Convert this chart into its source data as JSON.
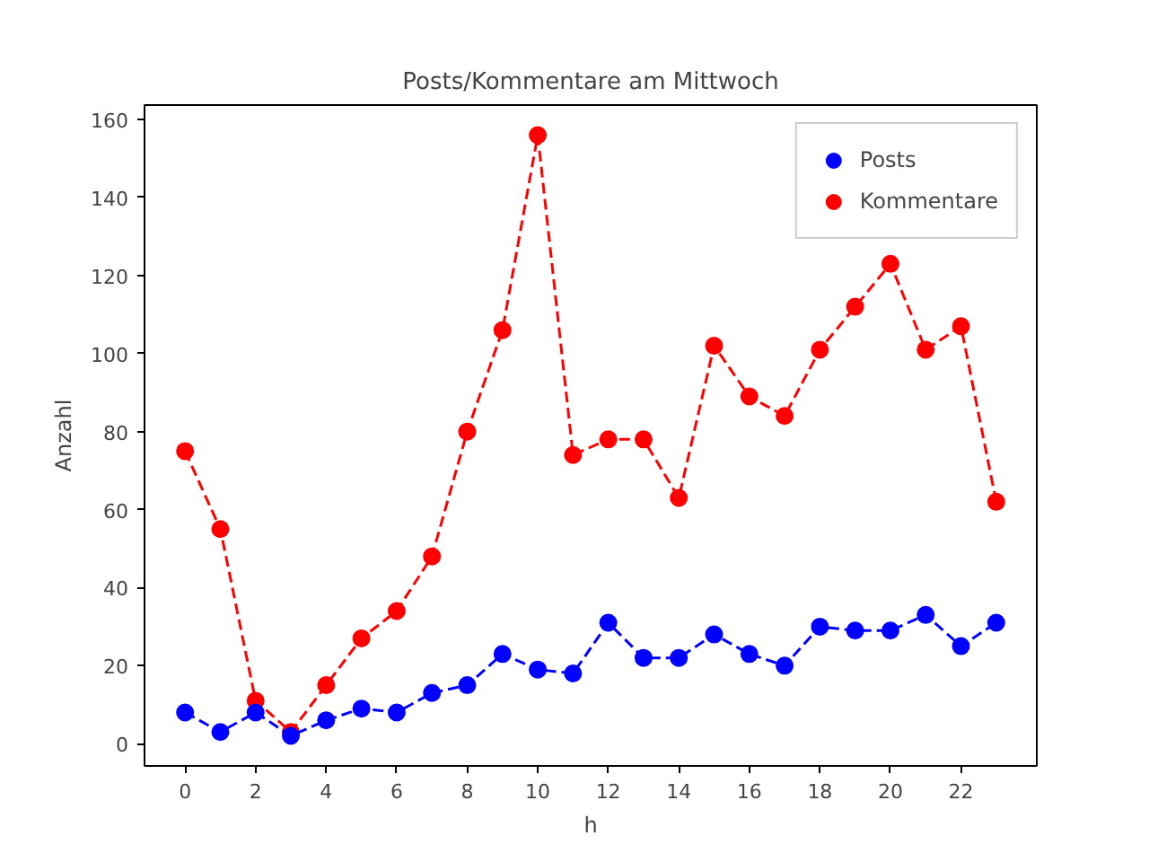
{
  "chart_data": {
    "type": "line",
    "title": "Posts/Kommentare am Mittwoch",
    "xlabel": "h",
    "ylabel": "Anzahl",
    "x": [
      0,
      1,
      2,
      3,
      4,
      5,
      6,
      7,
      8,
      9,
      10,
      11,
      12,
      13,
      14,
      15,
      16,
      17,
      18,
      19,
      20,
      21,
      22,
      23
    ],
    "series": [
      {
        "name": "Posts",
        "color": "#0000ff",
        "values": [
          8,
          3,
          8,
          2,
          6,
          9,
          8,
          13,
          15,
          23,
          19,
          18,
          31,
          22,
          22,
          28,
          23,
          20,
          30,
          29,
          29,
          33,
          25,
          31
        ]
      },
      {
        "name": "Kommentare",
        "color": "#ff0000",
        "values": [
          75,
          55,
          11,
          3,
          15,
          27,
          34,
          48,
          80,
          106,
          156,
          74,
          78,
          78,
          63,
          102,
          89,
          84,
          101,
          112,
          123,
          101,
          107,
          62
        ]
      }
    ],
    "xlim": [
      -1.15,
      24.15
    ],
    "ylim": [
      -5.7,
      163.7
    ],
    "xticks": [
      0,
      2,
      4,
      6,
      8,
      10,
      12,
      14,
      16,
      18,
      20,
      22
    ],
    "yticks": [
      0,
      20,
      40,
      60,
      80,
      100,
      120,
      140,
      160
    ],
    "marker": "circle",
    "line_style": "dashed",
    "legend": "top right",
    "grid": false
  }
}
